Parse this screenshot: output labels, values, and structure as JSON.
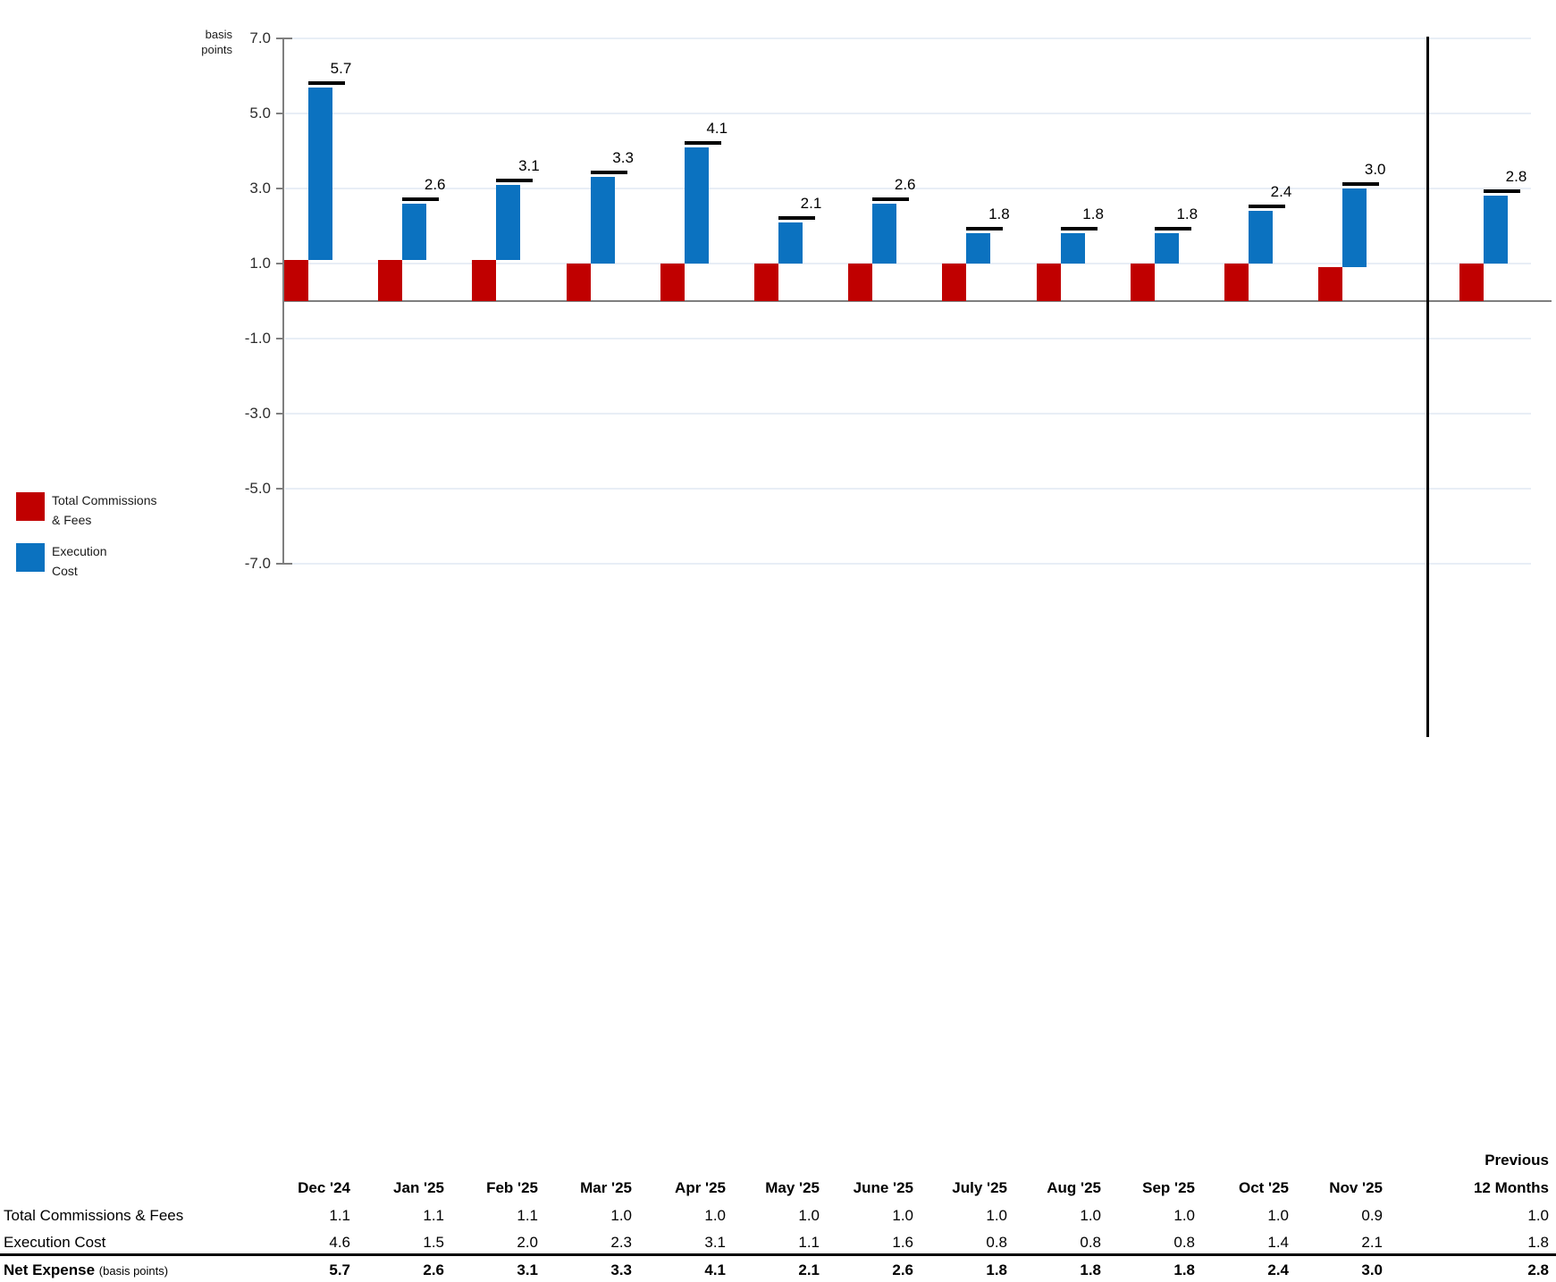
{
  "chart": {
    "y_axis_title_lines": [
      "basis",
      "points"
    ],
    "y_ticks": [
      "7.0",
      "5.0",
      "3.0",
      "1.0",
      "-1.0",
      "-3.0",
      "-5.0",
      "-7.0"
    ],
    "legend": [
      {
        "name": "total-commissions-fees",
        "color": "#C00000",
        "label_lines": [
          "Total Commissions",
          "& Fees"
        ]
      },
      {
        "name": "execution-cost",
        "color": "#0B72C0",
        "label_lines": [
          "Execution",
          "Cost"
        ]
      }
    ]
  },
  "chart_data": {
    "type": "bar",
    "stacked": true,
    "title": "",
    "ylabel": "basis points",
    "ylim": [
      -7.0,
      7.0
    ],
    "grid": true,
    "legend_position": "bottom-left",
    "categories": [
      "Dec '24",
      "Jan '25",
      "Feb '25",
      "Mar '25",
      "Apr '25",
      "May '25",
      "June '25",
      "July '25",
      "Aug '25",
      "Sep '25",
      "Oct '25",
      "Nov '25",
      "Previous 12 Months"
    ],
    "series": [
      {
        "name": "Total Commissions & Fees",
        "color": "#C00000",
        "values": [
          1.1,
          1.1,
          1.1,
          1.0,
          1.0,
          1.0,
          1.0,
          1.0,
          1.0,
          1.0,
          1.0,
          0.9,
          1.0
        ]
      },
      {
        "name": "Execution Cost",
        "color": "#0B72C0",
        "values": [
          4.6,
          1.5,
          2.0,
          2.3,
          3.1,
          1.1,
          1.6,
          0.8,
          0.8,
          0.8,
          1.4,
          2.1,
          1.8
        ]
      }
    ],
    "totals": [
      5.7,
      2.6,
      3.1,
      3.3,
      4.1,
      2.1,
      2.6,
      1.8,
      1.8,
      1.8,
      2.4,
      3.0,
      2.8
    ],
    "total_labels": [
      "5.7",
      "2.6",
      "3.1",
      "3.3",
      "4.1",
      "2.1",
      "2.6",
      "1.8",
      "1.8",
      "1.8",
      "2.4",
      "3.0",
      "2.8"
    ]
  },
  "table": {
    "col_headers": [
      "Dec '24",
      "Jan '25",
      "Feb '25",
      "Mar '25",
      "Apr '25",
      "May '25",
      "June '25",
      "July '25",
      "Aug '25",
      "Sep '25",
      "Oct '25",
      "Nov '25"
    ],
    "last_col_header_lines": [
      "Previous",
      "12 Months"
    ],
    "rows": [
      {
        "label": "Total Commissions & Fees",
        "bold": false,
        "values": [
          "1.1",
          "1.1",
          "1.1",
          "1.0",
          "1.0",
          "1.0",
          "1.0",
          "1.0",
          "1.0",
          "1.0",
          "1.0",
          "0.9"
        ],
        "prev": "1.0"
      },
      {
        "label": "Execution Cost",
        "bold": false,
        "values": [
          "4.6",
          "1.5",
          "2.0",
          "2.3",
          "3.1",
          "1.1",
          "1.6",
          "0.8",
          "0.8",
          "0.8",
          "1.4",
          "2.1"
        ],
        "prev": "1.8"
      },
      {
        "label": "Net Expense",
        "label_suffix": "(basis points)",
        "bold": true,
        "values": [
          "5.7",
          "2.6",
          "3.1",
          "3.3",
          "4.1",
          "2.1",
          "2.6",
          "1.8",
          "1.8",
          "1.8",
          "2.4",
          "3.0"
        ],
        "prev": "2.8"
      }
    ]
  },
  "colors": {
    "red": "#C00000",
    "blue": "#0B72C0",
    "gridline": "#E8EEF6",
    "axis_gray": "#7F7F7F",
    "marker_black": "#000000",
    "divider_black": "#000000"
  }
}
